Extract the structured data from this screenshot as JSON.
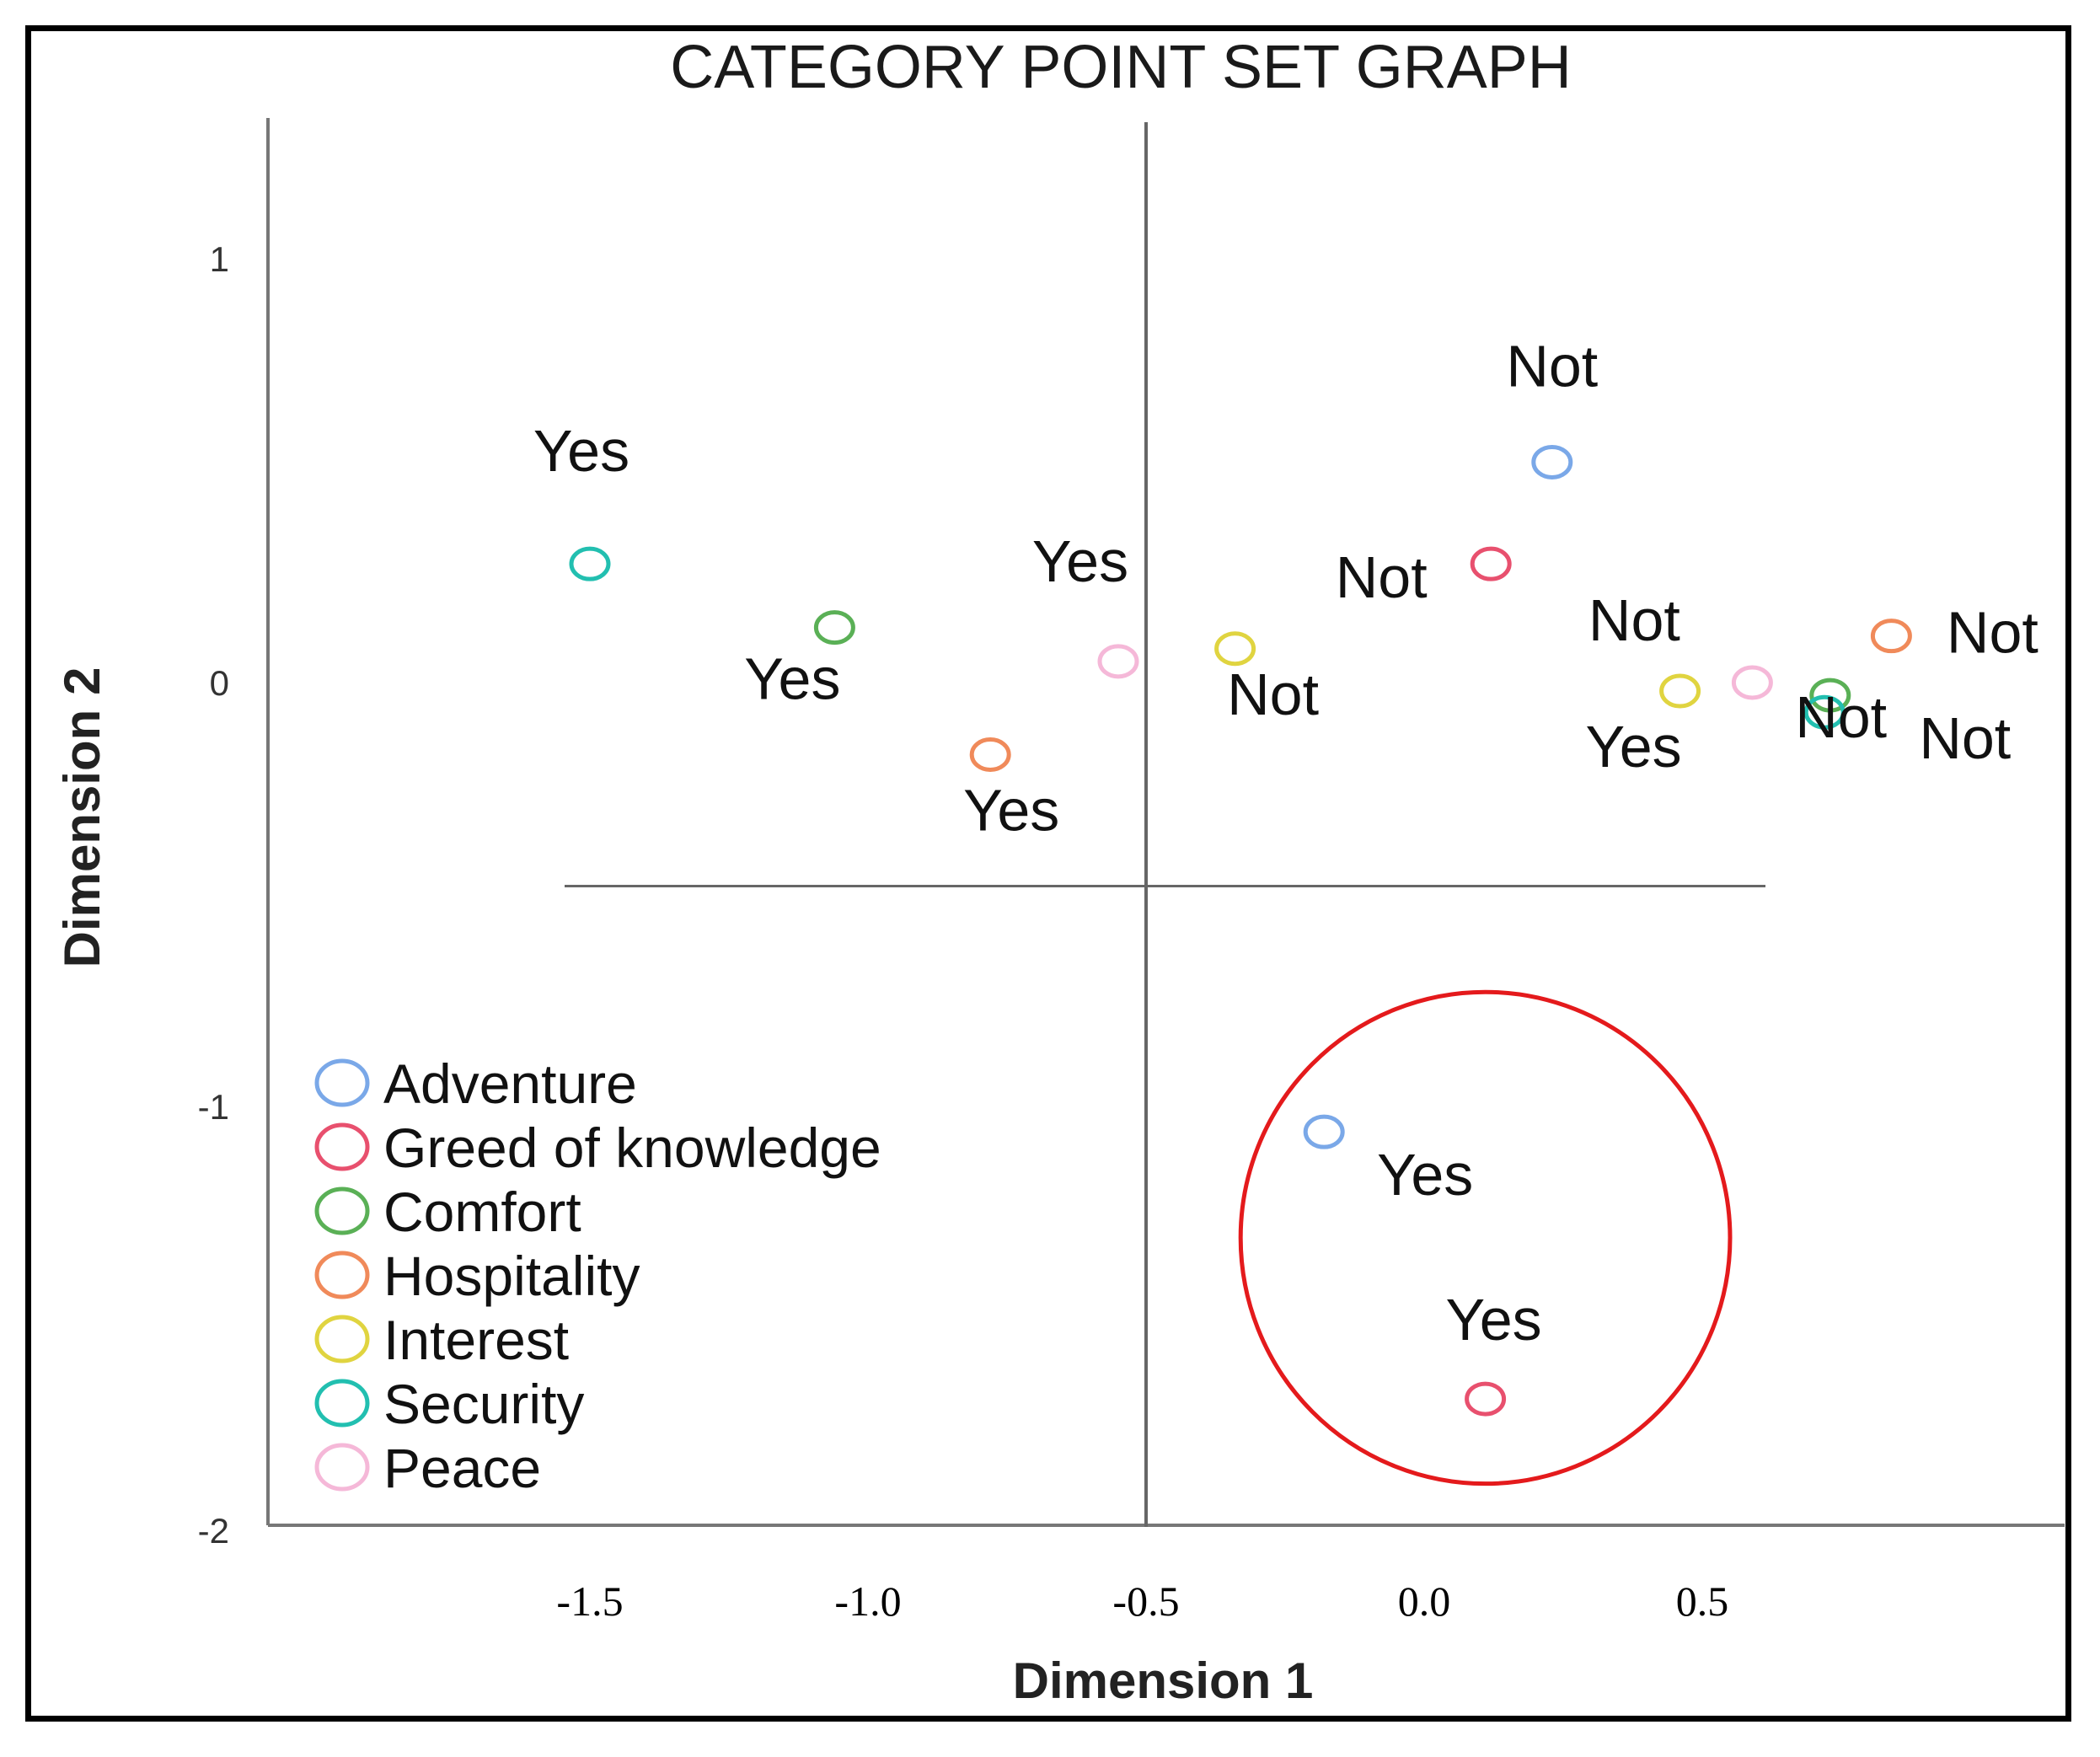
{
  "chart_data": {
    "type": "scatter",
    "title": "CATEGORY POINT SET GRAPH",
    "xlabel": "Dimension 1",
    "ylabel": "Dimension 2",
    "x_ticks": [
      "-1.5",
      "-1.0",
      "-0.5",
      "0.0",
      "0.5"
    ],
    "y_ticks": [
      "1",
      "0",
      "-1",
      "-2"
    ],
    "xlim": [
      -1.92,
      2.13
    ],
    "ylim": [
      -2.0,
      1.3
    ],
    "reference_lines": {
      "x": -0.5,
      "y": -0.48
    },
    "grid": false,
    "legend_position": "bottom-left",
    "marker": "open-circle",
    "series": [
      {
        "name": "Adventure",
        "color": "#7aa8e8",
        "points": [
          {
            "label": "Not",
            "x": 0.23,
            "y": 0.52
          },
          {
            "label": "Yes",
            "x": -0.18,
            "y": -1.06
          }
        ]
      },
      {
        "name": "Greed of knowledge",
        "color": "#e8506e",
        "points": [
          {
            "label": "Not",
            "x": 0.12,
            "y": 0.28
          },
          {
            "label": "Yes",
            "x": 0.11,
            "y": -1.69
          }
        ]
      },
      {
        "name": "Comfort",
        "color": "#5ab056",
        "points": [
          {
            "label": "Yes",
            "x": -1.06,
            "y": 0.13
          },
          {
            "label": "Not",
            "x": 0.73,
            "y": -0.03
          }
        ]
      },
      {
        "name": "Hospitality",
        "color": "#f08a5a",
        "points": [
          {
            "label": "Yes",
            "x": -0.78,
            "y": -0.17
          },
          {
            "label": "Not",
            "x": 0.84,
            "y": 0.11
          }
        ]
      },
      {
        "name": "Interest",
        "color": "#e0d440",
        "points": [
          {
            "label": "Not",
            "x": -0.34,
            "y": 0.08
          },
          {
            "label": "Yes",
            "x": 0.46,
            "y": -0.02
          }
        ]
      },
      {
        "name": "Security",
        "color": "#22bfb0",
        "points": [
          {
            "label": "Yes",
            "x": -1.5,
            "y": 0.28
          },
          {
            "label": "Not",
            "x": 0.72,
            "y": -0.07
          }
        ]
      },
      {
        "name": "Peace",
        "color": "#f5b8d8",
        "points": [
          {
            "label": "Yes",
            "x": -0.55,
            "y": 0.05
          },
          {
            "label": "Not",
            "x": 0.59,
            "y": 0.0
          }
        ]
      }
    ],
    "annotation": {
      "shape": "ellipse",
      "color": "#e41a1c",
      "x_center": 0.11,
      "y_center": -1.31,
      "x_radius": 0.44,
      "y_radius": 0.58
    }
  }
}
